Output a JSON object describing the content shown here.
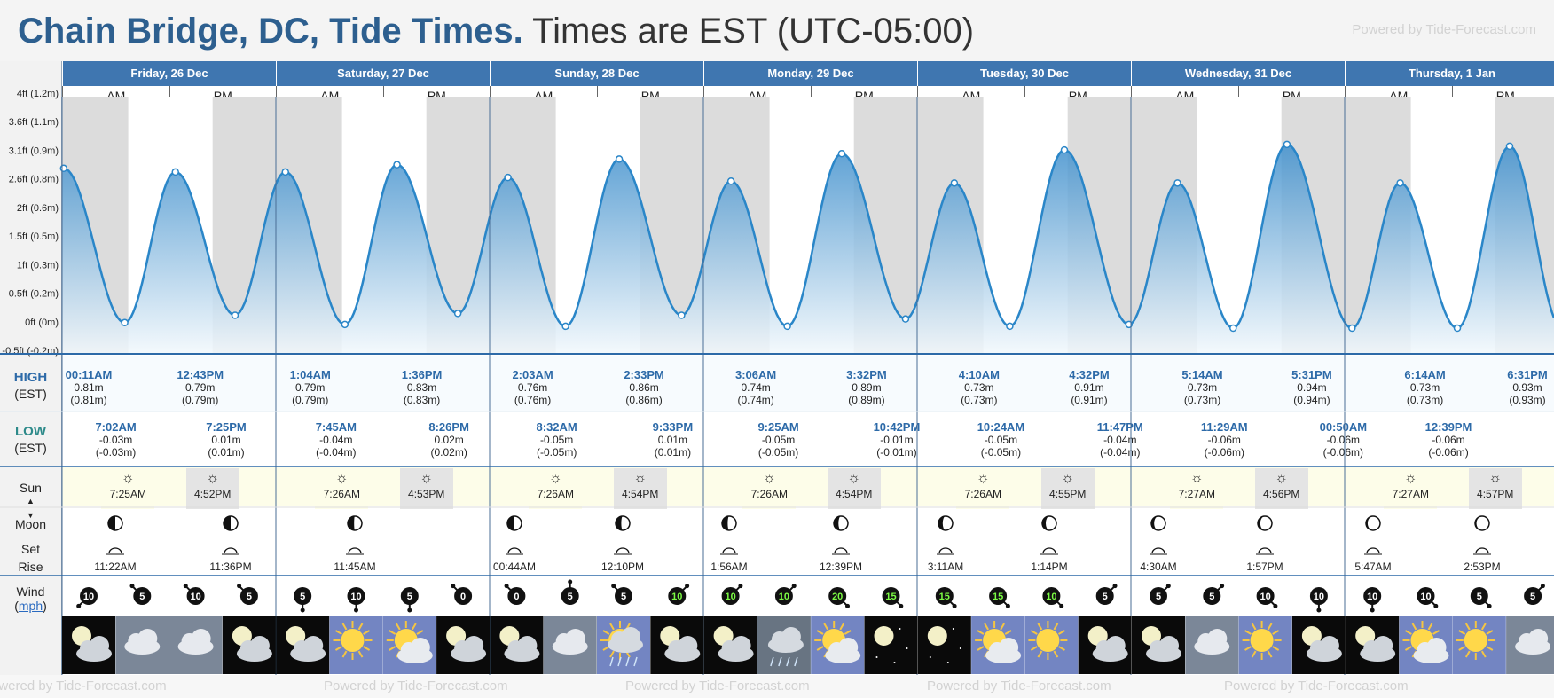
{
  "header": {
    "title_bold": "Chain Bridge, DC, Tide Times.",
    "title_rest": "Times are EST (UTC-05:00)",
    "powered": "Powered by Tide-Forecast.com"
  },
  "days": [
    {
      "label": "Friday, 26 Dec"
    },
    {
      "label": "Saturday, 27 Dec"
    },
    {
      "label": "Sunday, 28 Dec"
    },
    {
      "label": "Monday, 29 Dec"
    },
    {
      "label": "Tuesday, 30 Dec"
    },
    {
      "label": "Wednesday, 31 Dec"
    },
    {
      "label": "Thursday, 1 Jan"
    }
  ],
  "ampm": {
    "am": "AM",
    "pm": "PM"
  },
  "row_labels": {
    "high": "HIGH",
    "high_tz": "(EST)",
    "low": "LOW",
    "low_tz": "(EST)",
    "sun": "Sun",
    "moon": "Moon",
    "set": "Set",
    "rise": "Rise",
    "wind": "Wind",
    "wind_unit": "mph"
  },
  "chart_data": {
    "type": "area",
    "ylabels": [
      "4ft (1.2m)",
      "3.6ft (1.1m)",
      "3.1ft (0.9m)",
      "2.6ft (0.8m)",
      "2ft (0.6m)",
      "1.5ft (0.5m)",
      "1ft (0.3m)",
      "0.5ft (0.2m)",
      "0ft (0m)",
      "-0.5ft (-0.2m)"
    ],
    "ylim": [
      -0.2,
      1.2
    ],
    "points": [
      {
        "x": 0.18,
        "y": 0.81,
        "kind": "high"
      },
      {
        "x": 7.03,
        "y": -0.03,
        "kind": "low"
      },
      {
        "x": 12.72,
        "y": 0.79,
        "kind": "high"
      },
      {
        "x": 19.42,
        "y": 0.01,
        "kind": "low"
      },
      {
        "x": 25.07,
        "y": 0.79,
        "kind": "high"
      },
      {
        "x": 31.75,
        "y": -0.04,
        "kind": "low"
      },
      {
        "x": 37.6,
        "y": 0.83,
        "kind": "high"
      },
      {
        "x": 44.43,
        "y": 0.02,
        "kind": "low"
      },
      {
        "x": 50.05,
        "y": 0.76,
        "kind": "high"
      },
      {
        "x": 56.53,
        "y": -0.05,
        "kind": "low"
      },
      {
        "x": 62.55,
        "y": 0.86,
        "kind": "high"
      },
      {
        "x": 69.55,
        "y": 0.01,
        "kind": "low"
      },
      {
        "x": 75.1,
        "y": 0.74,
        "kind": "high"
      },
      {
        "x": 81.42,
        "y": -0.05,
        "kind": "low"
      },
      {
        "x": 87.53,
        "y": 0.89,
        "kind": "high"
      },
      {
        "x": 94.7,
        "y": -0.01,
        "kind": "low"
      },
      {
        "x": 100.17,
        "y": 0.73,
        "kind": "high"
      },
      {
        "x": 106.4,
        "y": -0.05,
        "kind": "low"
      },
      {
        "x": 112.53,
        "y": 0.91,
        "kind": "high"
      },
      {
        "x": 119.78,
        "y": -0.04,
        "kind": "low"
      },
      {
        "x": 125.23,
        "y": 0.73,
        "kind": "high"
      },
      {
        "x": 131.48,
        "y": -0.06,
        "kind": "low"
      },
      {
        "x": 137.52,
        "y": 0.94,
        "kind": "high"
      },
      {
        "x": 144.83,
        "y": -0.06,
        "kind": "low"
      },
      {
        "x": 150.23,
        "y": 0.73,
        "kind": "high"
      },
      {
        "x": 156.65,
        "y": -0.06,
        "kind": "low"
      },
      {
        "x": 162.52,
        "y": 0.93,
        "kind": "high"
      }
    ],
    "line_color": "#2a86c8",
    "fill_top": "#3f8fcc",
    "fill_bottom": "#f2f8fc",
    "night_color": "#dcdcdc",
    "sun": {
      "rise": 7.43,
      "set": 16.9
    }
  },
  "highs": [
    {
      "t": "00:11AM",
      "m": "0.81m",
      "p": "(0.81m)"
    },
    {
      "t": "12:43PM",
      "m": "0.79m",
      "p": "(0.79m)"
    },
    {
      "t": "1:04AM",
      "m": "0.79m",
      "p": "(0.79m)"
    },
    {
      "t": "1:36PM",
      "m": "0.83m",
      "p": "(0.83m)"
    },
    {
      "t": "2:03AM",
      "m": "0.76m",
      "p": "(0.76m)"
    },
    {
      "t": "2:33PM",
      "m": "0.86m",
      "p": "(0.86m)"
    },
    {
      "t": "3:06AM",
      "m": "0.74m",
      "p": "(0.74m)"
    },
    {
      "t": "3:32PM",
      "m": "0.89m",
      "p": "(0.89m)"
    },
    {
      "t": "4:10AM",
      "m": "0.73m",
      "p": "(0.73m)"
    },
    {
      "t": "4:32PM",
      "m": "0.91m",
      "p": "(0.91m)"
    },
    {
      "t": "5:14AM",
      "m": "0.73m",
      "p": "(0.73m)"
    },
    {
      "t": "5:31PM",
      "m": "0.94m",
      "p": "(0.94m)"
    },
    {
      "t": "6:14AM",
      "m": "0.73m",
      "p": "(0.73m)"
    },
    {
      "t": "6:31PM",
      "m": "0.93m",
      "p": "(0.93m)"
    }
  ],
  "lows": [
    {
      "t": "7:02AM",
      "m": "-0.03m",
      "p": "(-0.03m)"
    },
    {
      "t": "7:25PM",
      "m": "0.01m",
      "p": "(0.01m)"
    },
    {
      "t": "7:45AM",
      "m": "-0.04m",
      "p": "(-0.04m)"
    },
    {
      "t": "8:26PM",
      "m": "0.02m",
      "p": "(0.02m)"
    },
    {
      "t": "8:32AM",
      "m": "-0.05m",
      "p": "(-0.05m)"
    },
    {
      "t": "9:33PM",
      "m": "0.01m",
      "p": "(0.01m)"
    },
    {
      "t": "9:25AM",
      "m": "-0.05m",
      "p": "(-0.05m)"
    },
    {
      "t": "10:42PM",
      "m": "-0.01m",
      "p": "(-0.01m)"
    },
    {
      "t": "10:24AM",
      "m": "-0.05m",
      "p": "(-0.05m)"
    },
    {
      "t": "11:47PM",
      "m": "-0.04m",
      "p": "(-0.04m)"
    },
    {
      "t": "11:29AM",
      "m": "-0.06m",
      "p": "(-0.06m)"
    },
    {
      "t": "00:50AM",
      "m": "-0.06m",
      "p": "(-0.06m)"
    },
    {
      "t": "12:39PM",
      "m": "-0.06m",
      "p": "(-0.06m)"
    }
  ],
  "sun": [
    {
      "rise": "7:25AM",
      "set": "4:52PM"
    },
    {
      "rise": "7:26AM",
      "set": "4:53PM"
    },
    {
      "rise": "7:26AM",
      "set": "4:54PM"
    },
    {
      "rise": "7:26AM",
      "set": "4:54PM"
    },
    {
      "rise": "7:26AM",
      "set": "4:55PM"
    },
    {
      "rise": "7:27AM",
      "set": "4:56PM"
    },
    {
      "rise": "7:27AM",
      "set": "4:57PM"
    }
  ],
  "moon": [
    {
      "t": "11:22AM",
      "kind": "set",
      "phase": 0.5
    },
    {
      "t": "11:36PM",
      "kind": "rise",
      "phase": 0.5
    },
    {
      "t": "11:45AM",
      "kind": "set",
      "phase": 0.45
    },
    {
      "t": "00:44AM",
      "kind": "rise",
      "phase": 0.45
    },
    {
      "t": "12:10PM",
      "kind": "set",
      "phase": 0.4
    },
    {
      "t": "1:56AM",
      "kind": "rise",
      "phase": 0.4
    },
    {
      "t": "12:39PM",
      "kind": "set",
      "phase": 0.33
    },
    {
      "t": "3:11AM",
      "kind": "rise",
      "phase": 0.3
    },
    {
      "t": "1:14PM",
      "kind": "set",
      "phase": 0.25
    },
    {
      "t": "4:30AM",
      "kind": "rise",
      "phase": 0.2
    },
    {
      "t": "1:57PM",
      "kind": "set",
      "phase": 0.18
    },
    {
      "t": "5:47AM",
      "kind": "rise",
      "phase": 0.12
    },
    {
      "t": "2:53PM",
      "kind": "set",
      "phase": 0.1
    }
  ],
  "wind": [
    {
      "s": "10",
      "dir": 225,
      "color": "#ffffff"
    },
    {
      "s": "5",
      "dir": 315,
      "color": "#ffffff"
    },
    {
      "s": "10",
      "dir": 315,
      "color": "#ffffff"
    },
    {
      "s": "5",
      "dir": 315,
      "color": "#ffffff"
    },
    {
      "s": "5",
      "dir": 180,
      "color": "#ffffff"
    },
    {
      "s": "10",
      "dir": 180,
      "color": "#ffffff"
    },
    {
      "s": "5",
      "dir": 180,
      "color": "#ffffff"
    },
    {
      "s": "0",
      "dir": 315,
      "color": "#ffffff"
    },
    {
      "s": "0",
      "dir": 315,
      "color": "#ffffff"
    },
    {
      "s": "5",
      "dir": 0,
      "color": "#ffffff"
    },
    {
      "s": "5",
      "dir": 315,
      "color": "#ffffff"
    },
    {
      "s": "10",
      "dir": 45,
      "color": "#7cfc44"
    },
    {
      "s": "10",
      "dir": 45,
      "color": "#7cfc44"
    },
    {
      "s": "10",
      "dir": 45,
      "color": "#7cfc44"
    },
    {
      "s": "20",
      "dir": 135,
      "color": "#7cfc44"
    },
    {
      "s": "15",
      "dir": 135,
      "color": "#7cfc44"
    },
    {
      "s": "15",
      "dir": 135,
      "color": "#7cfc44"
    },
    {
      "s": "15",
      "dir": 135,
      "color": "#7cfc44"
    },
    {
      "s": "10",
      "dir": 135,
      "color": "#7cfc44"
    },
    {
      "s": "5",
      "dir": 45,
      "color": "#ffffff"
    },
    {
      "s": "5",
      "dir": 45,
      "color": "#ffffff"
    },
    {
      "s": "5",
      "dir": 45,
      "color": "#ffffff"
    },
    {
      "s": "10",
      "dir": 135,
      "color": "#ffffff"
    },
    {
      "s": "10",
      "dir": 180,
      "color": "#ffffff"
    },
    {
      "s": "10",
      "dir": 180,
      "color": "#ffffff"
    },
    {
      "s": "10",
      "dir": 135,
      "color": "#ffffff"
    },
    {
      "s": "5",
      "dir": 135,
      "color": "#ffffff"
    },
    {
      "s": "5",
      "dir": 45,
      "color": "#ffffff"
    }
  ],
  "weather": [
    "moon-cloud-icon",
    "cloud-icon",
    "cloud-icon",
    "moon-cloud-icon",
    "moon-cloud-icon",
    "sun-icon",
    "sun-cloud-icon",
    "moon-cloud-icon",
    "moon-cloud-icon",
    "cloud-icon",
    "sun-rain-icon",
    "moon-cloud-icon",
    "moon-cloud-icon",
    "rain-cloud-icon",
    "sun-cloud-icon",
    "moon-stars-icon",
    "moon-stars-icon",
    "sun-cloud-icon",
    "sun-icon",
    "moon-cloud-icon",
    "moon-cloud-icon",
    "cloud-icon",
    "sun-icon",
    "moon-cloud-icon",
    "moon-cloud-icon",
    "sun-cloud-icon",
    "sun-icon",
    "cloud-icon"
  ],
  "watermark": "Powered by Tide-Forecast.com"
}
